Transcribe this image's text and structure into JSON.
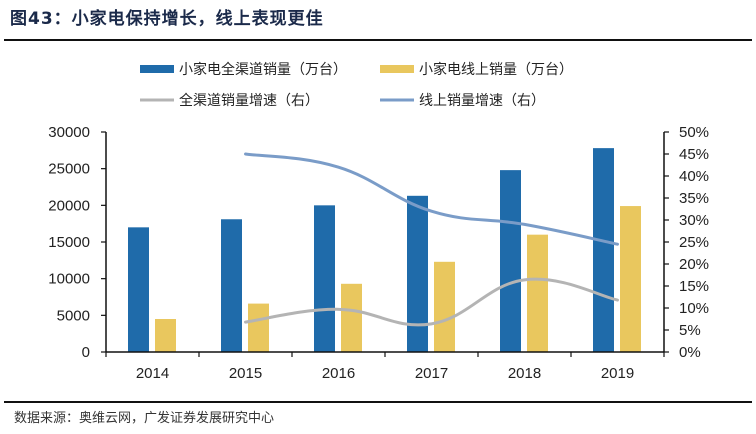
{
  "header": {
    "title": "图43：小家电保持增长，线上表现更佳"
  },
  "footer": {
    "source": "数据来源：奥维云网，广发证券发展研究中心"
  },
  "colors": {
    "bar_total": "#1f6baa",
    "bar_online": "#e9c75e",
    "line_total": "#b4b4b4",
    "line_online": "#7a9cc8",
    "axis": "#111111",
    "title": "#1b2a4a"
  },
  "chart_data": {
    "type": "bar+line",
    "title": "",
    "xlabel": "",
    "ylabel": "",
    "categories": [
      "2014",
      "2015",
      "2016",
      "2017",
      "2018",
      "2019"
    ],
    "y_left": {
      "range": [
        0,
        30000
      ],
      "ticks": [
        0,
        5000,
        10000,
        15000,
        20000,
        25000,
        30000
      ],
      "tick_labels": [
        "0",
        "5000",
        "10000",
        "15000",
        "20000",
        "25000",
        "30000"
      ]
    },
    "y_right": {
      "range": [
        0,
        0.5
      ],
      "ticks": [
        0,
        0.05,
        0.1,
        0.15,
        0.2,
        0.25,
        0.3,
        0.35,
        0.4,
        0.45,
        0.5
      ],
      "tick_labels": [
        "0%",
        "5%",
        "10%",
        "15%",
        "20%",
        "25%",
        "30%",
        "35%",
        "40%",
        "45%",
        "50%"
      ]
    },
    "grid": false,
    "legend_position": "top",
    "series": [
      {
        "name": "小家电全渠道销量（万台）",
        "kind": "bar",
        "axis": "left",
        "values": [
          17000,
          18100,
          20000,
          21300,
          24800,
          27800
        ]
      },
      {
        "name": "小家电线上销量（万台）",
        "kind": "bar",
        "axis": "left",
        "values": [
          4500,
          6600,
          9300,
          12300,
          16000,
          19900
        ]
      },
      {
        "name": "全渠道销量增速（右）",
        "kind": "line",
        "axis": "right",
        "values": [
          null,
          0.068,
          0.097,
          0.064,
          0.164,
          0.118
        ]
      },
      {
        "name": "线上销量增速（右）",
        "kind": "line",
        "axis": "right",
        "values": [
          null,
          0.45,
          0.42,
          0.32,
          0.29,
          0.245
        ]
      }
    ]
  }
}
